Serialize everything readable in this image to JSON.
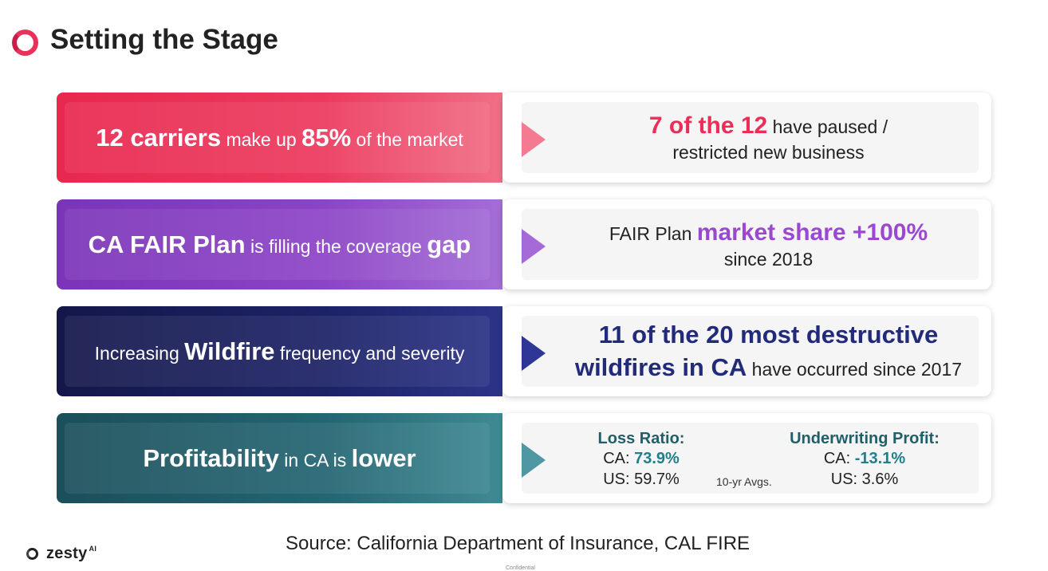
{
  "title": "Setting the Stage",
  "rows": [
    {
      "left": {
        "p1": "12 carriers",
        "p2": " make up ",
        "p3": "85%",
        "p4": " of the market"
      },
      "right": {
        "p1": "7 of the 12",
        "p2": " have paused /",
        "p3": "restricted new business"
      }
    },
    {
      "left": {
        "p1": "CA FAIR Plan",
        "p2": " is filling the coverage ",
        "p3": "gap"
      },
      "right": {
        "p1": "FAIR Plan ",
        "p2": "market share +100%",
        "p3": "since 2018"
      }
    },
    {
      "left": {
        "p1": "Increasing ",
        "p2": "Wildfire",
        "p3": " frequency and severity"
      },
      "right": {
        "p1": "11 of the 20 most destructive",
        "p2": "wildfires in CA",
        "p3": " have occurred since 2017"
      }
    },
    {
      "left": {
        "p1": "Profitability",
        "p2": " in CA is ",
        "p3": "lower"
      },
      "right": {
        "loss": {
          "header": "Loss Ratio:",
          "ca_label": "CA: ",
          "ca_value": "73.9%",
          "us": "US: 59.7%"
        },
        "uw": {
          "header": "Underwriting Profit:",
          "ca_label": "CA: ",
          "ca_value": "-13.1%",
          "us": "US: 3.6%"
        },
        "note": "10-yr Avgs."
      }
    }
  ],
  "colors": {
    "accent_red": "#e8284e",
    "accent_purple": "#8c44c6",
    "accent_navy": "#1c2266",
    "accent_teal": "#236572"
  },
  "footer": {
    "brand": "zesty",
    "brand_sup": "AI",
    "source": "Source: California Department of Insurance, CAL FIRE",
    "confidential": "Confidential"
  }
}
